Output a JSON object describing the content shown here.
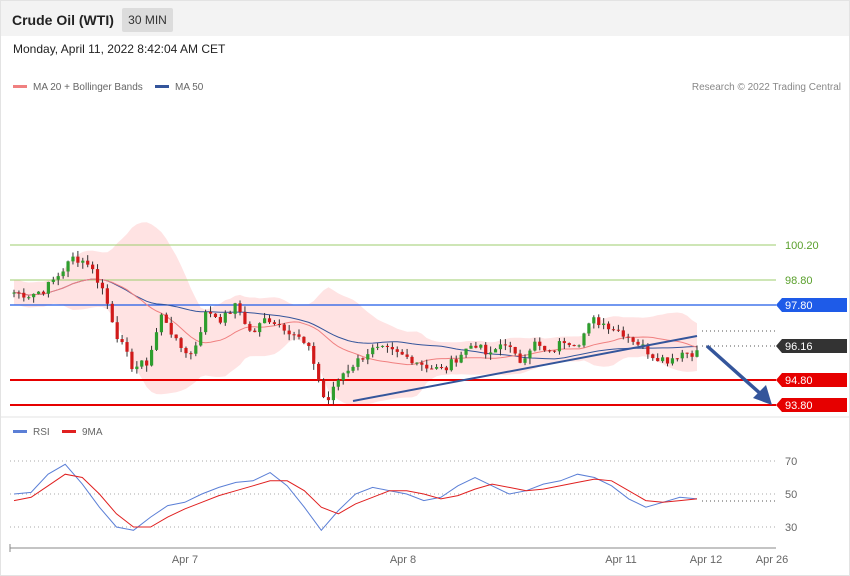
{
  "header": {
    "title": "Crude Oil (WTI)",
    "timeframe": "30 MIN"
  },
  "datetime": "Monday, April 11, 2022 8:42:04 AM CET",
  "legend": {
    "ma20": "MA 20 + Bollinger Bands",
    "ma50": "MA 50",
    "credit": "Research © 2022 Trading Central"
  },
  "rsi_legend": {
    "rsi": "RSI",
    "ma9": "9MA"
  },
  "colors": {
    "ma20": "#f08080",
    "ma50": "#34559b",
    "band_fill": "#ffe3e3",
    "bull": "#2e9e2e",
    "bear": "#d11a1a",
    "support": "#e60000",
    "level_blue": "#1e5be8",
    "level_green": "#7ab648",
    "rsi_line": "#5b7fd6",
    "rsi_ma": "#e02020",
    "trend": "#34559b"
  },
  "chart_data": [
    {
      "type": "candlestick",
      "series": [
        {
          "name": "MA 20 + Bollinger Bands"
        },
        {
          "name": "MA 50"
        }
      ],
      "levels": [
        {
          "value": 100.2,
          "label": "100.20",
          "style": "green-thin"
        },
        {
          "value": 98.8,
          "label": "98.80",
          "style": "green-thin"
        },
        {
          "value": 97.8,
          "label": "97.80",
          "style": "blue"
        },
        {
          "value": 96.16,
          "label": "96.16",
          "style": "current-price"
        },
        {
          "value": 94.8,
          "label": "94.80",
          "style": "red-support"
        },
        {
          "value": 93.8,
          "label": "93.80",
          "style": "red-support"
        }
      ],
      "close_path": [
        98.3,
        98.2,
        98.4,
        99.0,
        99.7,
        99.5,
        98.4,
        96.5,
        95.3,
        95.5,
        97.5,
        96.2,
        95.8,
        97.6,
        97.2,
        97.8,
        96.6,
        97.3,
        97.0,
        96.6,
        95.9,
        93.8,
        95.0,
        95.5,
        96.0,
        96.0,
        95.8,
        95.6,
        95.3,
        95.2,
        95.8,
        96.3,
        95.7,
        96.4,
        95.5,
        96.3,
        95.8,
        96.4,
        96.3,
        97.2,
        97.0,
        96.7,
        96.3,
        95.8,
        95.6,
        95.9,
        95.9
      ]
    },
    {
      "type": "line",
      "title": "RSI",
      "ylim": [
        20,
        80
      ],
      "yticks": [
        "70",
        "50",
        "30"
      ],
      "series": [
        {
          "name": "RSI",
          "values": [
            50,
            51,
            62,
            68,
            56,
            42,
            30,
            28,
            36,
            43,
            45,
            50,
            54,
            57,
            58,
            63,
            55,
            42,
            28,
            40,
            50,
            54,
            52,
            50,
            46,
            48,
            55,
            60,
            55,
            50,
            52,
            56,
            58,
            62,
            60,
            55,
            47,
            42,
            45,
            48,
            47
          ]
        },
        {
          "name": "9MA",
          "values": [
            46,
            48,
            55,
            62,
            60,
            50,
            38,
            30,
            30,
            36,
            41,
            45,
            49,
            52,
            55,
            58,
            58,
            52,
            42,
            38,
            44,
            48,
            52,
            52,
            50,
            47,
            49,
            53,
            56,
            54,
            52,
            53,
            55,
            57,
            59,
            58,
            52,
            46,
            45,
            46,
            47
          ]
        }
      ]
    }
  ],
  "xaxis": {
    "ticks": [
      "Apr 7",
      "Apr 8",
      "Apr 11",
      "Apr 12",
      "Apr 26"
    ]
  }
}
